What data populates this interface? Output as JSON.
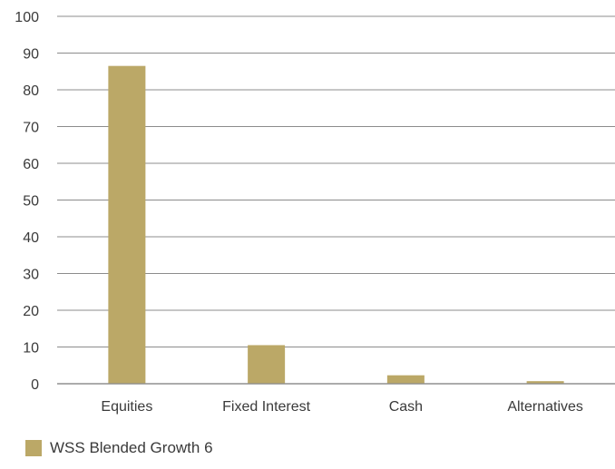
{
  "colors": {
    "bar": "#bba867",
    "grid": "#8c8c8c",
    "text": "#3a3a3a"
  },
  "chart_data": {
    "type": "bar",
    "title": "",
    "xlabel": "",
    "ylabel": "",
    "ylim": [
      0,
      100
    ],
    "yticks": [
      "0",
      "10",
      "20",
      "30",
      "40",
      "50",
      "60",
      "70",
      "80",
      "90",
      "100"
    ],
    "categories": [
      "Equities",
      "Fixed Interest",
      "Cash",
      "Alternatives"
    ],
    "series": [
      {
        "name": "WSS Blended Growth 6",
        "values": [
          86.5,
          10.5,
          2.3,
          0.7
        ]
      }
    ],
    "grid": true,
    "legend": "bottom-left"
  }
}
